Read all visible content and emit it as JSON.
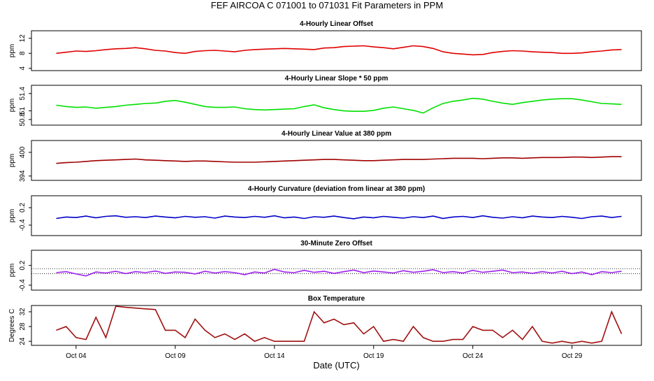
{
  "title": "FEF   AIRCOA C   071001 to 071031   Fit Parameters in PPM",
  "chart_data": [
    {
      "type": "line",
      "title": "4-Hourly Linear Offset",
      "ylabel": "ppm",
      "color": "#e00000",
      "xlim": [
        1.75,
        32.5
      ],
      "ylim": [
        3.4,
        14
      ],
      "yticks": [
        4,
        8,
        12
      ],
      "x": [
        3,
        3.5,
        4,
        4.5,
        5,
        5.5,
        6,
        6.5,
        7,
        7.5,
        8,
        8.5,
        9,
        9.5,
        10,
        10.5,
        11,
        11.5,
        12,
        12.5,
        13,
        13.5,
        14,
        14.5,
        15,
        15.5,
        16,
        16.5,
        17,
        17.5,
        18,
        18.5,
        19,
        19.5,
        20,
        20.5,
        21,
        21.5,
        22,
        22.5,
        23,
        23.5,
        24,
        24.5,
        25,
        25.5,
        26,
        26.5,
        27,
        27.5,
        28,
        28.5,
        29,
        29.5,
        30,
        30.5,
        31,
        31.5
      ],
      "values": [
        8.0,
        8.3,
        8.6,
        8.5,
        8.7,
        9.0,
        9.2,
        9.3,
        9.5,
        9.2,
        8.8,
        8.6,
        8.2,
        8.0,
        8.5,
        8.7,
        8.8,
        8.6,
        8.4,
        8.8,
        9.0,
        9.1,
        9.2,
        9.3,
        9.2,
        9.1,
        9.0,
        9.4,
        9.5,
        9.8,
        9.9,
        10.0,
        9.7,
        9.5,
        9.2,
        9.6,
        10.0,
        9.8,
        9.3,
        8.4,
        8.0,
        7.8,
        7.6,
        7.7,
        8.2,
        8.5,
        8.7,
        8.6,
        8.4,
        8.3,
        8.2,
        8.0,
        8.0,
        8.1,
        8.4,
        8.6,
        8.9,
        9.0
      ]
    },
    {
      "type": "line",
      "title": "4-Hourly Linear Slope * 50 ppm",
      "ylabel": "ppm",
      "color": "#00e000",
      "xlim": [
        1.75,
        32.5
      ],
      "ylim": [
        50.67,
        51.59
      ],
      "yticks": [
        50.8,
        51,
        51.4
      ],
      "x": [
        3,
        3.5,
        4,
        4.5,
        5,
        5.5,
        6,
        6.5,
        7,
        7.5,
        8,
        8.5,
        9,
        9.5,
        10,
        10.5,
        11,
        11.5,
        12,
        12.5,
        13,
        13.5,
        14,
        14.5,
        15,
        15.5,
        16,
        16.5,
        17,
        17.5,
        18,
        18.5,
        19,
        19.5,
        20,
        20.5,
        21,
        21.5,
        22,
        22.5,
        23,
        23.5,
        24,
        24.5,
        25,
        25.5,
        26,
        26.5,
        27,
        27.5,
        28,
        28.5,
        29,
        29.5,
        30,
        30.5,
        31,
        31.5
      ],
      "values": [
        51.13,
        51.1,
        51.08,
        51.09,
        51.06,
        51.08,
        51.1,
        51.13,
        51.15,
        51.17,
        51.18,
        51.22,
        51.24,
        51.2,
        51.15,
        51.1,
        51.08,
        51.08,
        51.09,
        51.05,
        51.03,
        51.02,
        51.03,
        51.04,
        51.05,
        51.1,
        51.14,
        51.07,
        51.03,
        51.0,
        50.99,
        50.99,
        51.01,
        51.06,
        51.09,
        51.05,
        51.01,
        50.95,
        51.07,
        51.17,
        51.22,
        51.25,
        51.29,
        51.27,
        51.22,
        51.18,
        51.15,
        51.19,
        51.22,
        51.25,
        51.27,
        51.28,
        51.28,
        51.25,
        51.21,
        51.17,
        51.16,
        51.15
      ]
    },
    {
      "type": "line",
      "title": "4-Hourly Linear Value at 380 ppm",
      "ylabel": "ppm",
      "color": "#a00000",
      "xlim": [
        1.75,
        32.5
      ],
      "ylim": [
        392.9,
        403
      ],
      "yticks": [
        394,
        400
      ],
      "x": [
        3,
        3.5,
        4,
        4.5,
        5,
        5.5,
        6,
        6.5,
        7,
        7.5,
        8,
        8.5,
        9,
        9.5,
        10,
        10.5,
        11,
        11.5,
        12,
        12.5,
        13,
        13.5,
        14,
        14.5,
        15,
        15.5,
        16,
        16.5,
        17,
        17.5,
        18,
        18.5,
        19,
        19.5,
        20,
        20.5,
        21,
        21.5,
        22,
        22.5,
        23,
        23.5,
        24,
        24.5,
        25,
        25.5,
        26,
        26.5,
        27,
        27.5,
        28,
        28.5,
        29,
        29.5,
        30,
        30.5,
        31,
        31.5
      ],
      "values": [
        397.2,
        397.4,
        397.5,
        397.7,
        397.9,
        398.0,
        398.1,
        398.2,
        398.3,
        398.1,
        398.0,
        397.9,
        397.8,
        397.7,
        397.8,
        397.8,
        397.7,
        397.6,
        397.5,
        397.5,
        397.5,
        397.6,
        397.7,
        397.8,
        397.9,
        398.0,
        398.1,
        398.2,
        398.2,
        398.1,
        398.0,
        397.9,
        397.9,
        398.0,
        398.1,
        398.2,
        398.2,
        398.2,
        398.3,
        398.4,
        398.5,
        398.5,
        398.5,
        398.4,
        398.5,
        398.6,
        398.6,
        398.5,
        398.6,
        398.7,
        398.7,
        398.7,
        398.8,
        398.8,
        398.7,
        398.8,
        398.9,
        398.9
      ]
    },
    {
      "type": "line",
      "title": "4-Hourly Curvature (deviation from linear at 380 ppm)",
      "ylabel": "ppm",
      "color": "#0000c8",
      "xlim": [
        1.75,
        32.5
      ],
      "ylim": [
        -0.76,
        0.61
      ],
      "yticks": [
        -0.4,
        0.2
      ],
      "x": [
        3,
        3.5,
        4,
        4.5,
        5,
        5.5,
        6,
        6.5,
        7,
        7.5,
        8,
        8.5,
        9,
        9.5,
        10,
        10.5,
        11,
        11.5,
        12,
        12.5,
        13,
        13.5,
        14,
        14.5,
        15,
        15.5,
        16,
        16.5,
        17,
        17.5,
        18,
        18.5,
        19,
        19.5,
        20,
        20.5,
        21,
        21.5,
        22,
        22.5,
        23,
        23.5,
        24,
        24.5,
        25,
        25.5,
        26,
        26.5,
        27,
        27.5,
        28,
        28.5,
        29,
        29.5,
        30,
        30.5,
        31,
        31.5
      ],
      "values": [
        -0.17,
        -0.12,
        -0.14,
        -0.09,
        -0.15,
        -0.1,
        -0.08,
        -0.13,
        -0.11,
        -0.14,
        -0.09,
        -0.12,
        -0.15,
        -0.1,
        -0.13,
        -0.11,
        -0.16,
        -0.09,
        -0.12,
        -0.14,
        -0.1,
        -0.13,
        -0.08,
        -0.15,
        -0.12,
        -0.17,
        -0.11,
        -0.13,
        -0.09,
        -0.14,
        -0.18,
        -0.12,
        -0.15,
        -0.1,
        -0.13,
        -0.16,
        -0.11,
        -0.14,
        -0.09,
        -0.17,
        -0.12,
        -0.1,
        -0.14,
        -0.08,
        -0.13,
        -0.16,
        -0.11,
        -0.15,
        -0.09,
        -0.12,
        -0.14,
        -0.1,
        -0.13,
        -0.17,
        -0.11,
        -0.09,
        -0.14,
        -0.1
      ]
    },
    {
      "type": "line",
      "title": "30-Minute Zero Offset",
      "ylabel": "ppm",
      "color": "#a020f0",
      "xlim": [
        1.75,
        32.5
      ],
      "ylim": [
        -0.55,
        0.66
      ],
      "yticks": [
        -0.4,
        0.2
      ],
      "hlines": [
        0.1,
        -0.05
      ],
      "x": [
        3,
        3.5,
        4,
        4.5,
        5,
        5.5,
        6,
        6.5,
        7,
        7.5,
        8,
        8.5,
        9,
        9.5,
        10,
        10.5,
        11,
        11.5,
        12,
        12.5,
        13,
        13.5,
        14,
        14.5,
        15,
        15.5,
        16,
        16.5,
        17,
        17.5,
        18,
        18.5,
        19,
        19.5,
        20,
        20.5,
        21,
        21.5,
        22,
        22.5,
        23,
        23.5,
        24,
        24.5,
        25,
        25.5,
        26,
        26.5,
        27,
        27.5,
        28,
        28.5,
        29,
        29.5,
        30,
        30.5,
        31,
        31.5
      ],
      "values": [
        -0.02,
        0.01,
        -0.06,
        -0.12,
        0.0,
        -0.03,
        0.02,
        -0.05,
        0.01,
        -0.02,
        0.03,
        -0.04,
        0.0,
        -0.01,
        -0.06,
        0.02,
        -0.03,
        0.01,
        -0.02,
        -0.08,
        0.0,
        -0.03,
        0.08,
        0.0,
        -0.02,
        0.05,
        -0.01,
        0.02,
        -0.04,
        0.01,
        0.06,
        -0.02,
        0.03,
        0.0,
        -0.03,
        0.04,
        -0.01,
        0.02,
        0.07,
        -0.02,
        0.01,
        -0.03,
        0.05,
        -0.01,
        0.02,
        0.06,
        -0.02,
        0.0,
        -0.04,
        0.01,
        -0.03,
        0.02,
        -0.05,
        0.0,
        -0.08,
        0.01,
        -0.02,
        0.02
      ]
    },
    {
      "type": "line",
      "title": "Box Temperature",
      "ylabel": "Degrees C",
      "xlabel": "Date (UTC)",
      "color": "#a01010",
      "xlim": [
        1.75,
        32.5
      ],
      "ylim": [
        22.9,
        33.7
      ],
      "yticks": [
        24,
        28,
        32
      ],
      "xticks": [
        {
          "value": 4,
          "label": "Oct 04"
        },
        {
          "value": 9,
          "label": "Oct 09"
        },
        {
          "value": 14,
          "label": "Oct 14"
        },
        {
          "value": 19,
          "label": "Oct 19"
        },
        {
          "value": 24,
          "label": "Oct 24"
        },
        {
          "value": 29,
          "label": "Oct 29"
        }
      ],
      "x": [
        3,
        3.5,
        4,
        4.5,
        5,
        5.5,
        6,
        6.5,
        7,
        7.5,
        8,
        8.5,
        9,
        9.5,
        10,
        10.5,
        11,
        11.5,
        12,
        12.5,
        13,
        13.5,
        14,
        14.5,
        15,
        15.5,
        16,
        16.5,
        17,
        17.5,
        18,
        18.5,
        19,
        19.5,
        20,
        20.5,
        21,
        21.5,
        22,
        22.5,
        23,
        23.5,
        24,
        24.5,
        25,
        25.5,
        26,
        26.5,
        27,
        27.5,
        28,
        28.5,
        29,
        29.5,
        30,
        30.5,
        31,
        31.5
      ],
      "values": [
        27,
        28,
        25,
        24.5,
        30.5,
        25,
        33.5,
        33.2,
        33,
        32.8,
        32.6,
        27,
        27,
        25,
        30,
        27,
        25,
        26,
        24.5,
        26,
        24,
        25,
        24,
        24,
        24,
        24,
        32,
        29,
        30,
        28.5,
        29,
        26,
        28,
        24,
        24.5,
        24,
        28,
        25,
        24,
        24,
        24.5,
        24.5,
        28,
        27,
        27,
        25,
        27,
        24.5,
        28,
        24,
        23.5,
        24,
        23.5,
        24,
        23.5,
        24,
        32,
        26
      ]
    }
  ]
}
